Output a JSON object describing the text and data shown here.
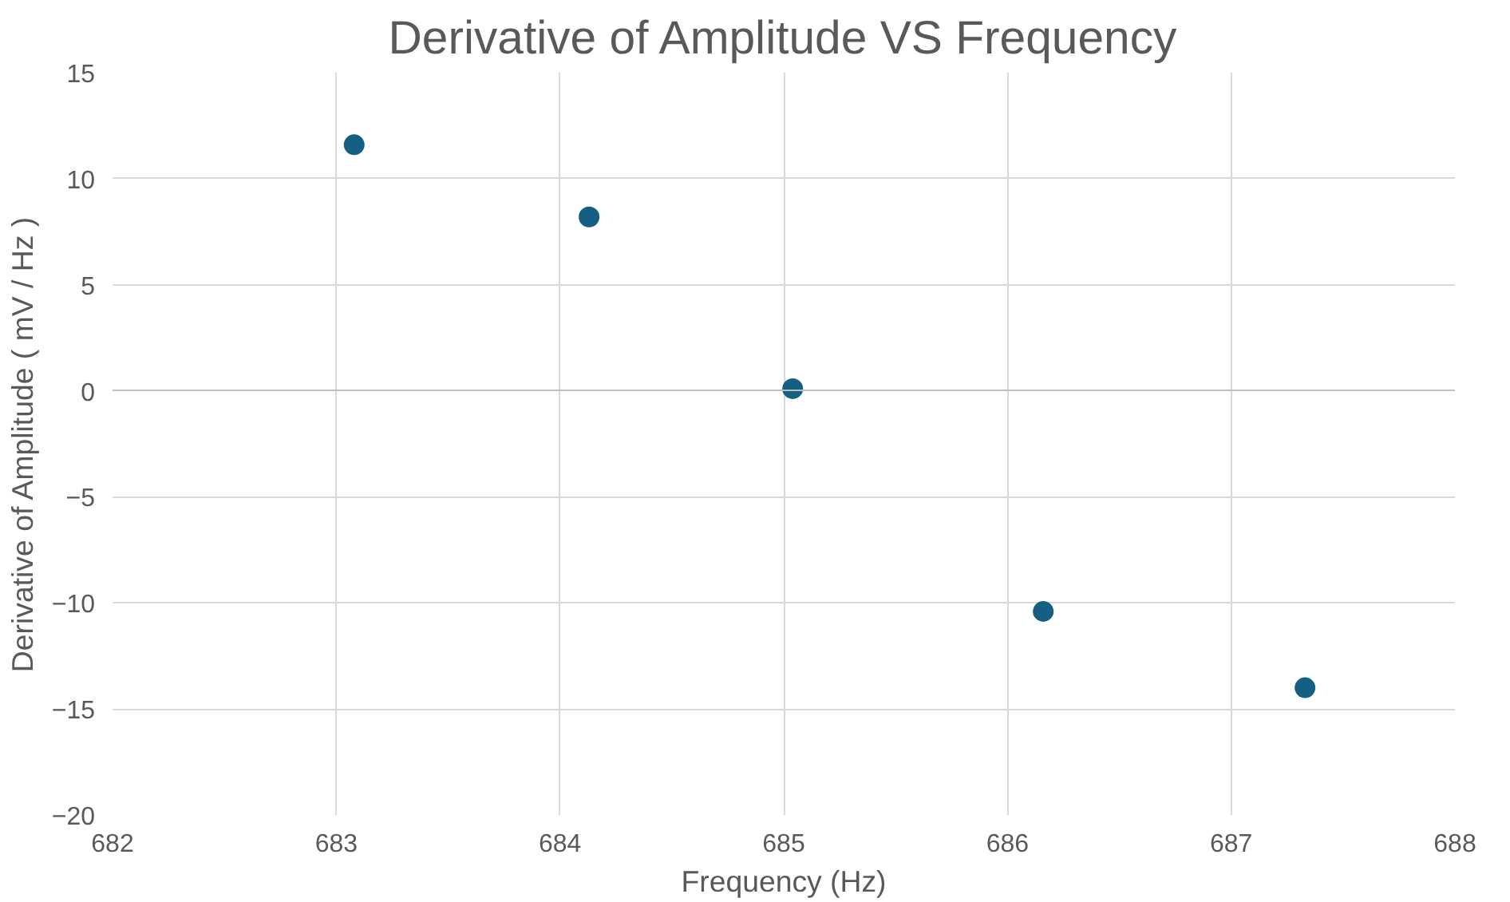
{
  "chart_data": {
    "type": "scatter",
    "title": "Derivative of Amplitude VS Frequency",
    "xlabel": "Frequency (Hz)",
    "ylabel": "Derivative of Amplitude ( mV / Hz )",
    "x": [
      683.08,
      684.13,
      685.04,
      686.16,
      687.33
    ],
    "series": [
      {
        "color": "#156082",
        "values": [
          11.6,
          8.2,
          0.1,
          -10.4,
          -14.0
        ]
      }
    ],
    "xlim": [
      682,
      688
    ],
    "ylim": [
      -20,
      15
    ],
    "xticks": [
      682,
      683,
      684,
      685,
      686,
      687,
      688
    ],
    "yticks": [
      -20,
      -15,
      -10,
      -5,
      0,
      5,
      10,
      15
    ],
    "grid": true,
    "marker": "circle"
  }
}
